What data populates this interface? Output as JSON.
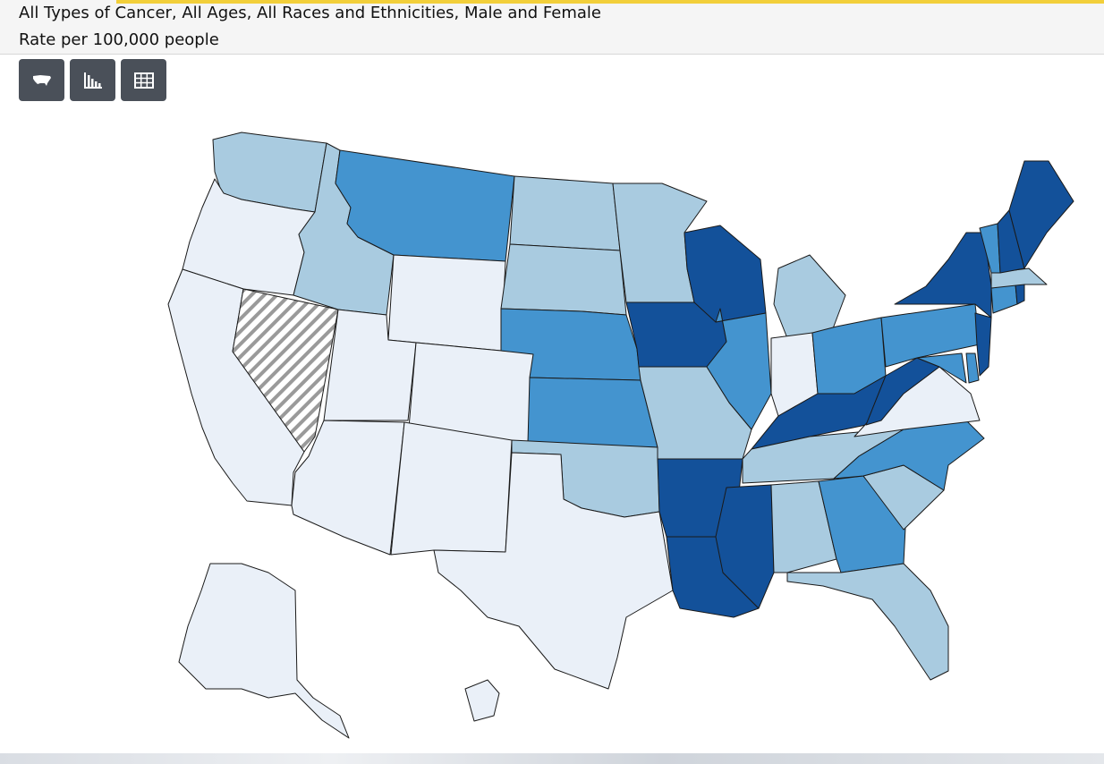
{
  "header": {
    "title": "All Types of Cancer, All Ages, All Races and Ethnicities, Male and Female",
    "subtitle": "Rate per 100,000 people"
  },
  "toolbar": {
    "buttons": [
      {
        "icon": "us-map-icon"
      },
      {
        "icon": "bar-chart-icon"
      },
      {
        "icon": "table-icon"
      }
    ]
  },
  "colors": {
    "accent": "#f2cf3a",
    "toolbar_button": "#4a5059",
    "no_data_hatch": "#9a9a9a"
  },
  "map": {
    "level_colors": {
      "1": "#eaf0f8",
      "2": "#a9cbe0",
      "3": "#4494cf",
      "4": "#13519a"
    },
    "state_levels": {
      "WA": 2,
      "OR": 1,
      "CA": 1,
      "NV": 0,
      "ID": 2,
      "MT": 3,
      "WY": 1,
      "UT": 1,
      "AZ": 1,
      "CO": 1,
      "NM": 1,
      "ND": 2,
      "SD": 2,
      "NE": 3,
      "KS": 3,
      "OK": 2,
      "TX": 1,
      "MN": 2,
      "IA": 4,
      "MO": 2,
      "AR": 4,
      "LA": 4,
      "WI": 4,
      "IL": 3,
      "MI": 2,
      "IN": 1,
      "OH": 3,
      "KY": 4,
      "TN": 2,
      "MS": 4,
      "AL": 2,
      "GA": 3,
      "FL": 2,
      "SC": 2,
      "NC": 3,
      "VA": 1,
      "WV": 4,
      "MD": 3,
      "DE": 3,
      "PA": 3,
      "NJ": 4,
      "NY": 4,
      "CT": 3,
      "RI": 4,
      "MA": 2,
      "VT": 3,
      "NH": 4,
      "ME": 4,
      "AK": 1,
      "HI": 1
    }
  }
}
